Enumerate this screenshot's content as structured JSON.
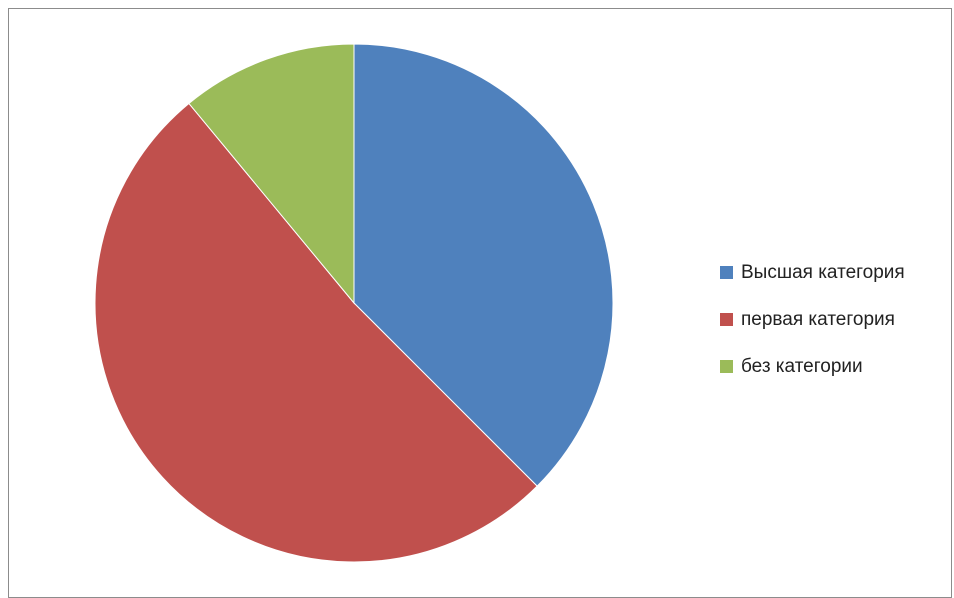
{
  "chart_data": {
    "type": "pie",
    "title": "",
    "categories": [
      "Высшая категория",
      "первая категория",
      "без категории"
    ],
    "values": [
      37.5,
      51.5,
      11.0
    ],
    "colors": [
      "#4f81bd",
      "#c0504d",
      "#9bbb59"
    ],
    "start_angle_deg": 0,
    "direction": "clockwise",
    "legend_position": "right"
  }
}
